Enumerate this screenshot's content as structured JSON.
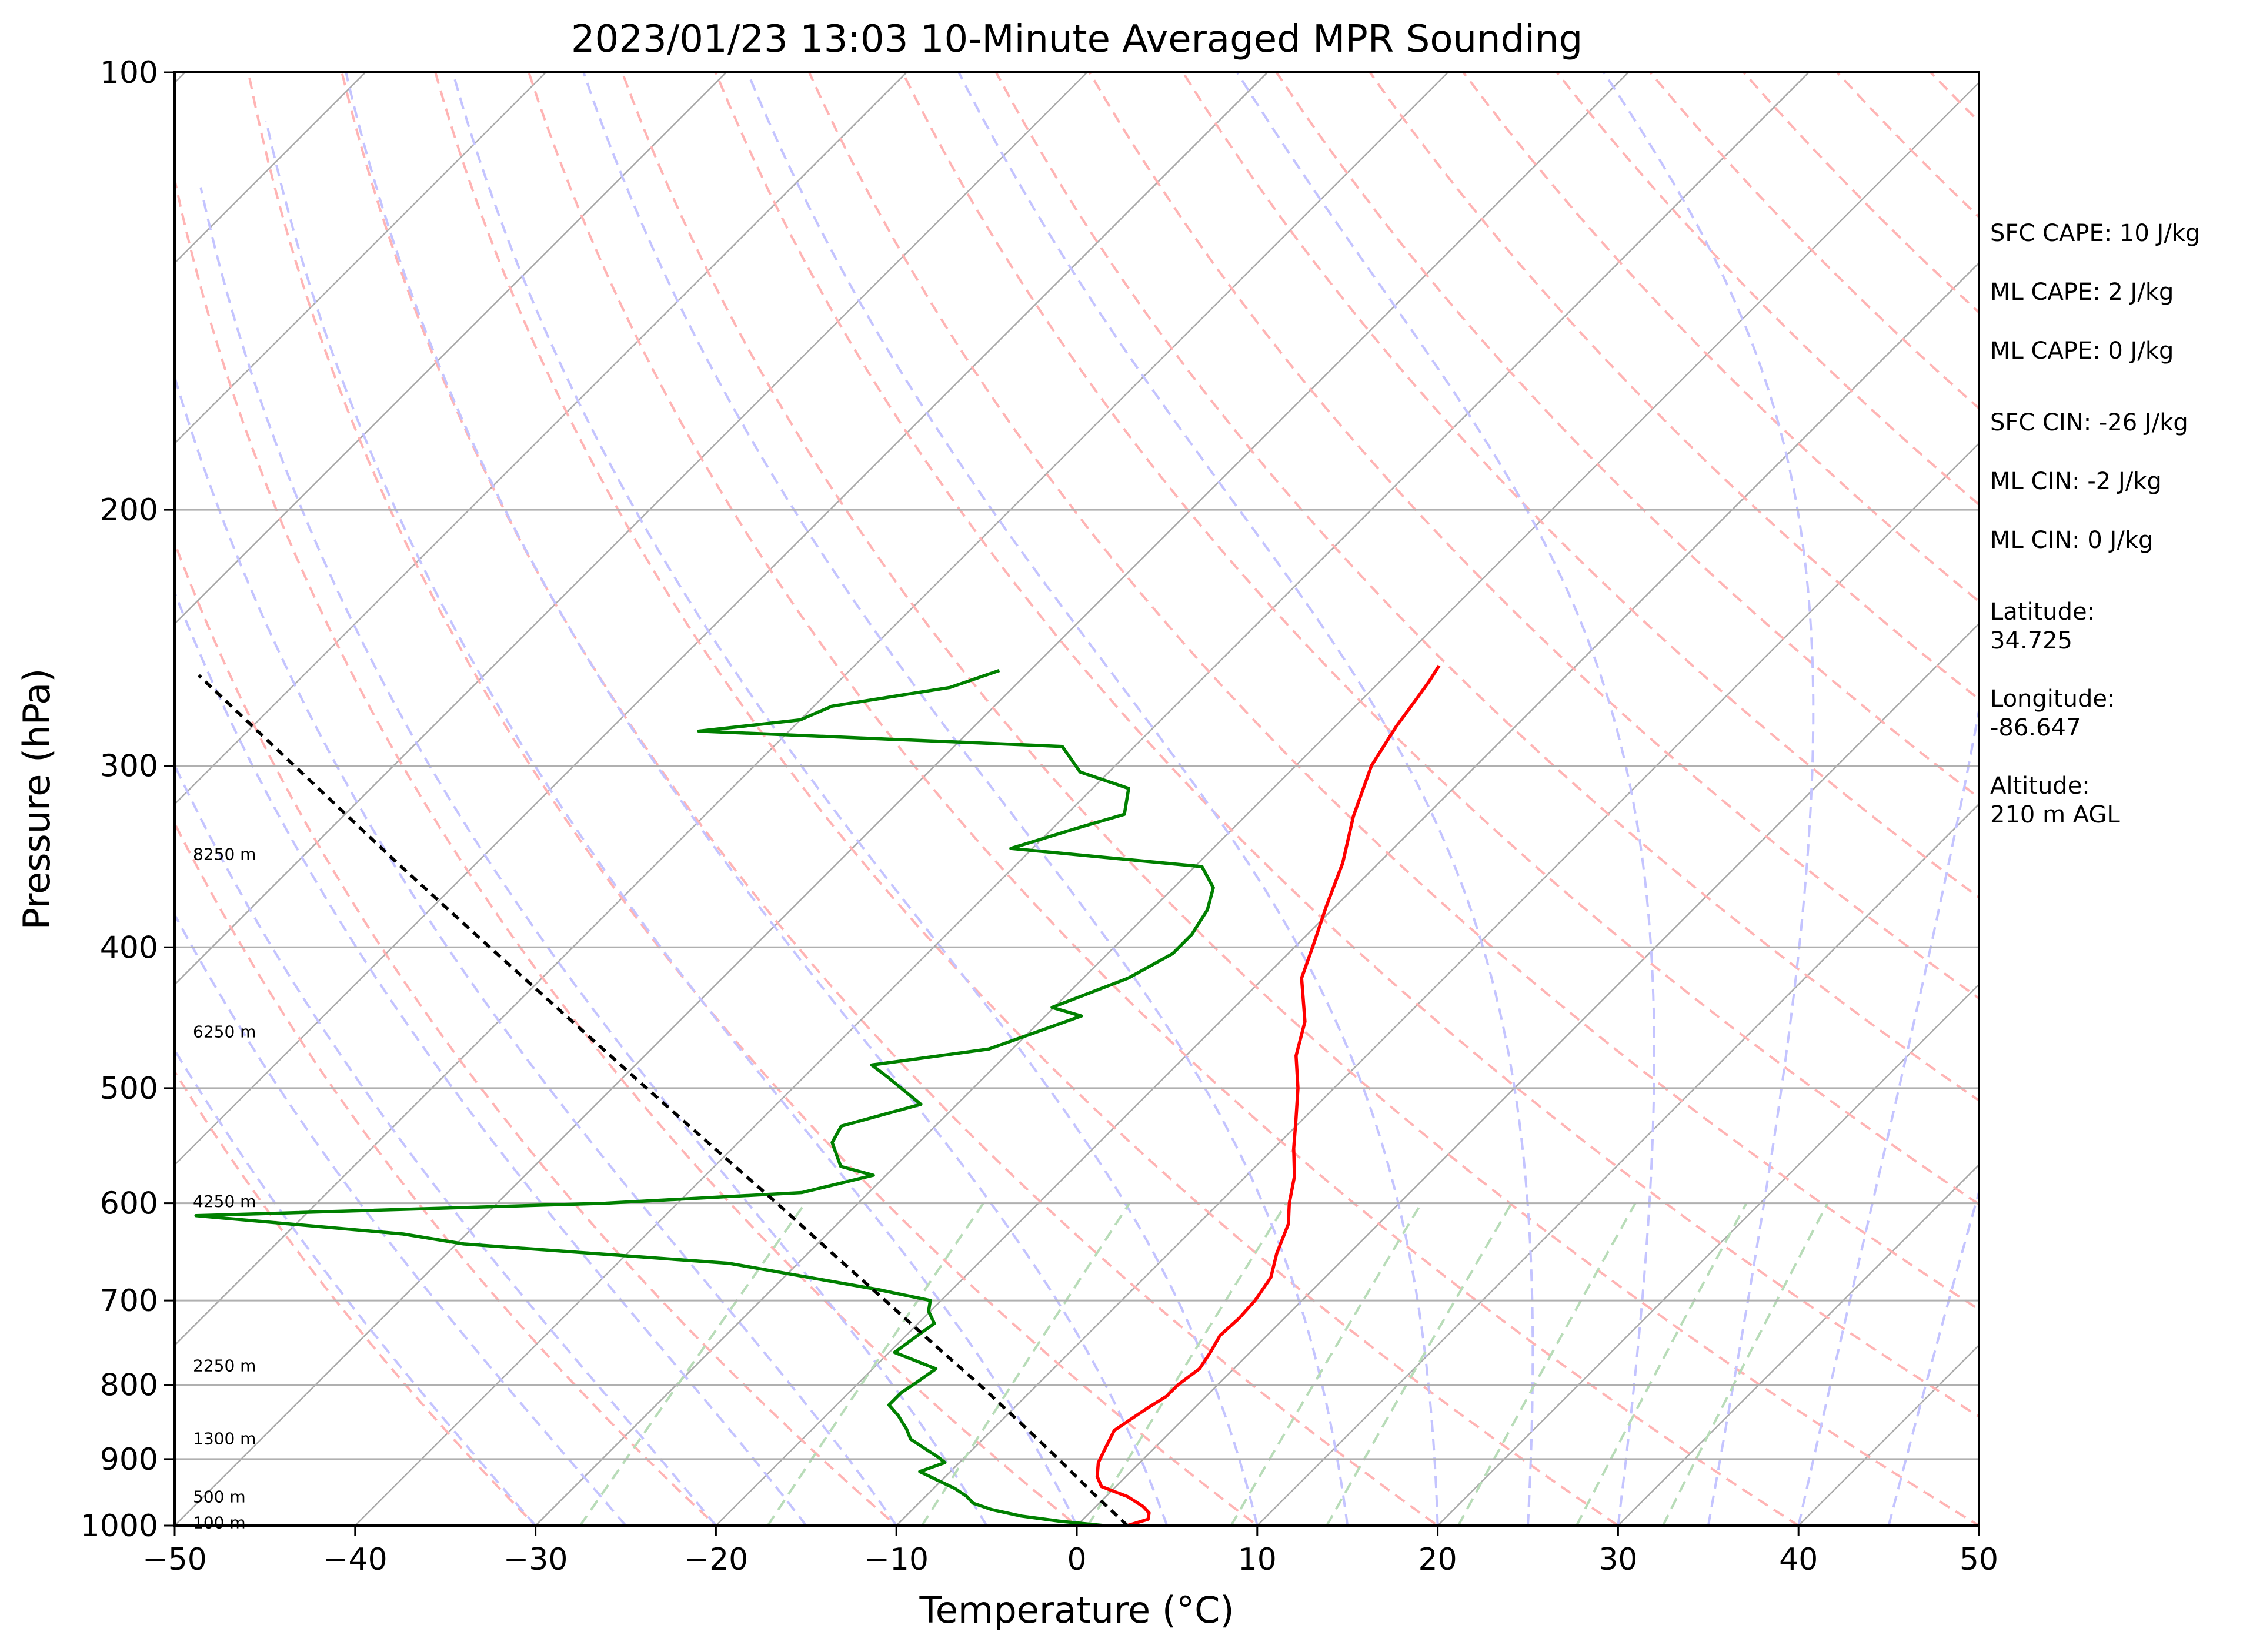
{
  "chart_data": {
    "type": "line",
    "title": "2023/01/23 13:03 10-Minute Averaged MPR Sounding",
    "xlabel": "Temperature (°C)",
    "ylabel": "Pressure (hPa)",
    "xlim": [
      -50,
      50
    ],
    "ylim": [
      1000,
      100
    ],
    "y_scale": "log",
    "x_ticks": [
      "−50",
      "−40",
      "−30",
      "−20",
      "−10",
      "0",
      "10",
      "20",
      "30",
      "40",
      "50"
    ],
    "x_tick_values": [
      -50,
      -40,
      -30,
      -20,
      -10,
      0,
      10,
      20,
      30,
      40,
      50
    ],
    "y_ticks": [
      100,
      200,
      300,
      400,
      500,
      600,
      700,
      800,
      900,
      1000
    ],
    "y_gridlines": [
      200,
      300,
      400,
      500,
      600,
      700,
      800,
      900
    ],
    "skew": true,
    "height_labels": [
      {
        "text": "8250 m",
        "p": 345
      },
      {
        "text": "6250 m",
        "p": 457
      },
      {
        "text": "4250 m",
        "p": 598
      },
      {
        "text": "2250 m",
        "p": 776
      },
      {
        "text": "1300 m",
        "p": 871
      },
      {
        "text": "500 m",
        "p": 955
      },
      {
        "text": "100 m",
        "p": 995
      }
    ],
    "series": [
      {
        "color": "#ff0000",
        "points": [
          [
            1000,
            2.8
          ],
          [
            990,
            3.6
          ],
          [
            980,
            3.3
          ],
          [
            970,
            2.6
          ],
          [
            955,
            1.2
          ],
          [
            940,
            -0.8
          ],
          [
            925,
            -1.6
          ],
          [
            905,
            -2.3
          ],
          [
            885,
            -2.7
          ],
          [
            860,
            -3.2
          ],
          [
            830,
            -2.6
          ],
          [
            815,
            -2.2
          ],
          [
            800,
            -2.2
          ],
          [
            780,
            -1.9
          ],
          [
            760,
            -2.2
          ],
          [
            740,
            -2.6
          ],
          [
            720,
            -2.5
          ],
          [
            700,
            -2.6
          ],
          [
            675,
            -3.0
          ],
          [
            650,
            -4.0
          ],
          [
            620,
            -5.0
          ],
          [
            600,
            -6.1
          ],
          [
            575,
            -7.3
          ],
          [
            550,
            -8.9
          ],
          [
            525,
            -10.4
          ],
          [
            500,
            -12.0
          ],
          [
            475,
            -13.9
          ],
          [
            450,
            -15.3
          ],
          [
            420,
            -17.9
          ],
          [
            400,
            -19.0
          ],
          [
            375,
            -20.5
          ],
          [
            350,
            -22.0
          ],
          [
            325,
            -24.0
          ],
          [
            300,
            -25.8
          ],
          [
            282,
            -26.6
          ],
          [
            270,
            -27.0
          ],
          [
            262,
            -27.3
          ],
          [
            256,
            -27.6
          ]
        ]
      },
      {
        "color": "#008000",
        "points": [
          [
            1000,
            1.5
          ],
          [
            993,
            -1.2
          ],
          [
            985,
            -3.6
          ],
          [
            975,
            -5.6
          ],
          [
            965,
            -7.0
          ],
          [
            955,
            -7.7
          ],
          [
            943,
            -8.8
          ],
          [
            930,
            -10.3
          ],
          [
            918,
            -11.7
          ],
          [
            905,
            -10.8
          ],
          [
            897,
            -11.5
          ],
          [
            885,
            -12.7
          ],
          [
            872,
            -14.0
          ],
          [
            858,
            -14.8
          ],
          [
            840,
            -16.0
          ],
          [
            826,
            -17.1
          ],
          [
            810,
            -17.1
          ],
          [
            796,
            -16.8
          ],
          [
            780,
            -16.5
          ],
          [
            760,
            -19.7
          ],
          [
            742,
            -19.4
          ],
          [
            726,
            -19.1
          ],
          [
            712,
            -20.1
          ],
          [
            700,
            -20.6
          ],
          [
            688,
            -24.1
          ],
          [
            660,
            -33.8
          ],
          [
            640,
            -49.6
          ],
          [
            630,
            -53.5
          ],
          [
            612,
            -66.0
          ],
          [
            600,
            -44.0
          ],
          [
            590,
            -33.7
          ],
          [
            574,
            -30.7
          ],
          [
            566,
            -33.0
          ],
          [
            545,
            -34.8
          ],
          [
            531,
            -35.2
          ],
          [
            513,
            -32.0
          ],
          [
            491,
            -35.4
          ],
          [
            482,
            -36.9
          ],
          [
            470,
            -31.3
          ],
          [
            446,
            -28.0
          ],
          [
            440,
            -30.1
          ],
          [
            420,
            -27.5
          ],
          [
            404,
            -26.4
          ],
          [
            392,
            -26.4
          ],
          [
            377,
            -26.9
          ],
          [
            364,
            -27.8
          ],
          [
            352,
            -29.6
          ],
          [
            342,
            -41.2
          ],
          [
            331,
            -38.6
          ],
          [
            324,
            -36.8
          ],
          [
            311,
            -38.0
          ],
          [
            303,
            -41.6
          ],
          [
            291,
            -44.0
          ],
          [
            284,
            -65.0
          ],
          [
            279,
            -60.0
          ],
          [
            273,
            -59.0
          ],
          [
            265,
            -53.5
          ],
          [
            258,
            -51.7
          ]
        ]
      },
      {
        "color": "#000000",
        "dashed": true,
        "points": [
          [
            1000,
            2.8
          ],
          [
            950,
            -0.9
          ],
          [
            900,
            -4.7
          ],
          [
            850,
            -8.8
          ],
          [
            800,
            -13.2
          ],
          [
            750,
            -18.0
          ],
          [
            700,
            -23.1
          ],
          [
            650,
            -28.6
          ],
          [
            600,
            -34.5
          ],
          [
            550,
            -41.0
          ],
          [
            500,
            -48.1
          ],
          [
            450,
            -55.9
          ],
          [
            400,
            -64.6
          ],
          [
            350,
            -74.4
          ],
          [
            300,
            -85.5
          ],
          [
            260,
            -95.8
          ]
        ]
      }
    ],
    "stats": [
      "SFC CAPE: 10 J/kg",
      "ML CAPE: 2 J/kg",
      "ML CAPE: 0 J/kg",
      "SFC CIN: -26 J/kg",
      "ML CIN: -2 J/kg",
      "ML CIN: 0 J/kg",
      "Latitude:",
      "34.725",
      "Longitude:",
      "-86.647",
      "Altitude:",
      "210 m AGL"
    ]
  }
}
